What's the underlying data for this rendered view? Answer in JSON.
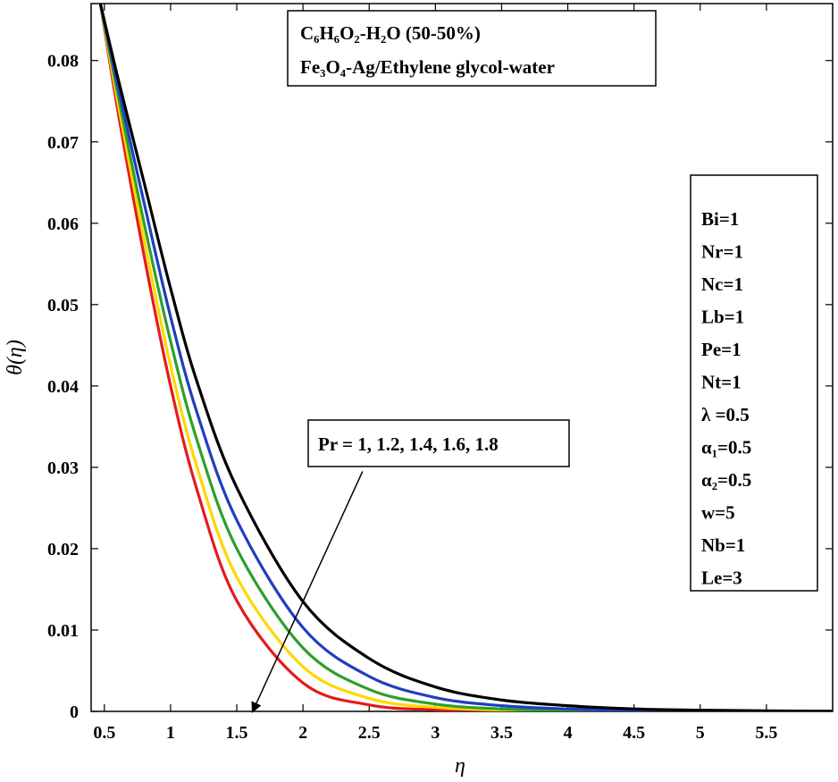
{
  "chart_data": {
    "type": "line",
    "xlabel": "η",
    "ylabel": "θ(η)",
    "xlim": [
      0.4,
      6.0
    ],
    "ylim": [
      0,
      0.087
    ],
    "x_ticks": [
      "0.5",
      "1",
      "1.5",
      "2",
      "2.5",
      "3",
      "3.5",
      "4",
      "4.5",
      "5",
      "5.5"
    ],
    "y_ticks": [
      "0",
      "0.01",
      "0.02",
      "0.03",
      "0.04",
      "0.05",
      "0.06",
      "0.07",
      "0.08"
    ],
    "grid": false,
    "x": [
      0.47,
      0.6,
      0.8,
      1.0,
      1.2,
      1.5,
      2.0,
      2.5,
      3.0,
      3.5,
      4.0,
      4.5,
      5.0,
      5.5,
      6.0
    ],
    "series": [
      {
        "color": "#e41a1c",
        "values": [
          0.087,
          0.074,
          0.056,
          0.04,
          0.0272,
          0.0136,
          0.0035,
          0.0008,
          0.0002,
          5e-05,
          1e-05,
          0.0,
          0.0,
          0.0,
          0.0
        ]
      },
      {
        "color": "#ffd700",
        "values": [
          0.087,
          0.075,
          0.058,
          0.0425,
          0.03,
          0.0165,
          0.0055,
          0.0016,
          0.0005,
          0.00015,
          5e-05,
          2e-05,
          0.0,
          0.0,
          0.0
        ]
      },
      {
        "color": "#2ca02c",
        "values": [
          0.087,
          0.076,
          0.06,
          0.0455,
          0.0333,
          0.02,
          0.0078,
          0.0027,
          0.0009,
          0.0003,
          0.0001,
          4e-05,
          1e-05,
          0.0,
          0.0
        ]
      },
      {
        "color": "#1f3fbf",
        "values": [
          0.087,
          0.077,
          0.0625,
          0.0485,
          0.0367,
          0.0235,
          0.0103,
          0.0043,
          0.0017,
          0.0007,
          0.0003,
          0.0001,
          4e-05,
          1e-05,
          0.0
        ]
      },
      {
        "color": "#000000",
        "values": [
          0.087,
          0.078,
          0.065,
          0.052,
          0.0405,
          0.0275,
          0.0135,
          0.0065,
          0.003,
          0.0014,
          0.0007,
          0.0003,
          0.00015,
          7e-05,
          2e-05
        ]
      }
    ],
    "title_box": {
      "line1": "C₆H₆O₂-H₂O (50-50%)",
      "line2": "Fe₃O₄-Ag/Ethylene glycol-water"
    },
    "params": [
      "Bi=1",
      "Nr=1",
      "Nc=1",
      "Lb=1",
      "Pe=1",
      "Nt=1",
      "λ =0.5",
      "α₁=0.5",
      "α₂=0.5",
      "w=5",
      "Nb=1",
      "Le=3"
    ],
    "annotation": {
      "text": "Pr = 1, 1.2, 1.4, 1.6, 1.8",
      "arrow_from": {
        "x": 2.45,
        "y": 0.0295
      },
      "arrow_to": {
        "x": 1.62,
        "y": 0.0
      }
    }
  }
}
